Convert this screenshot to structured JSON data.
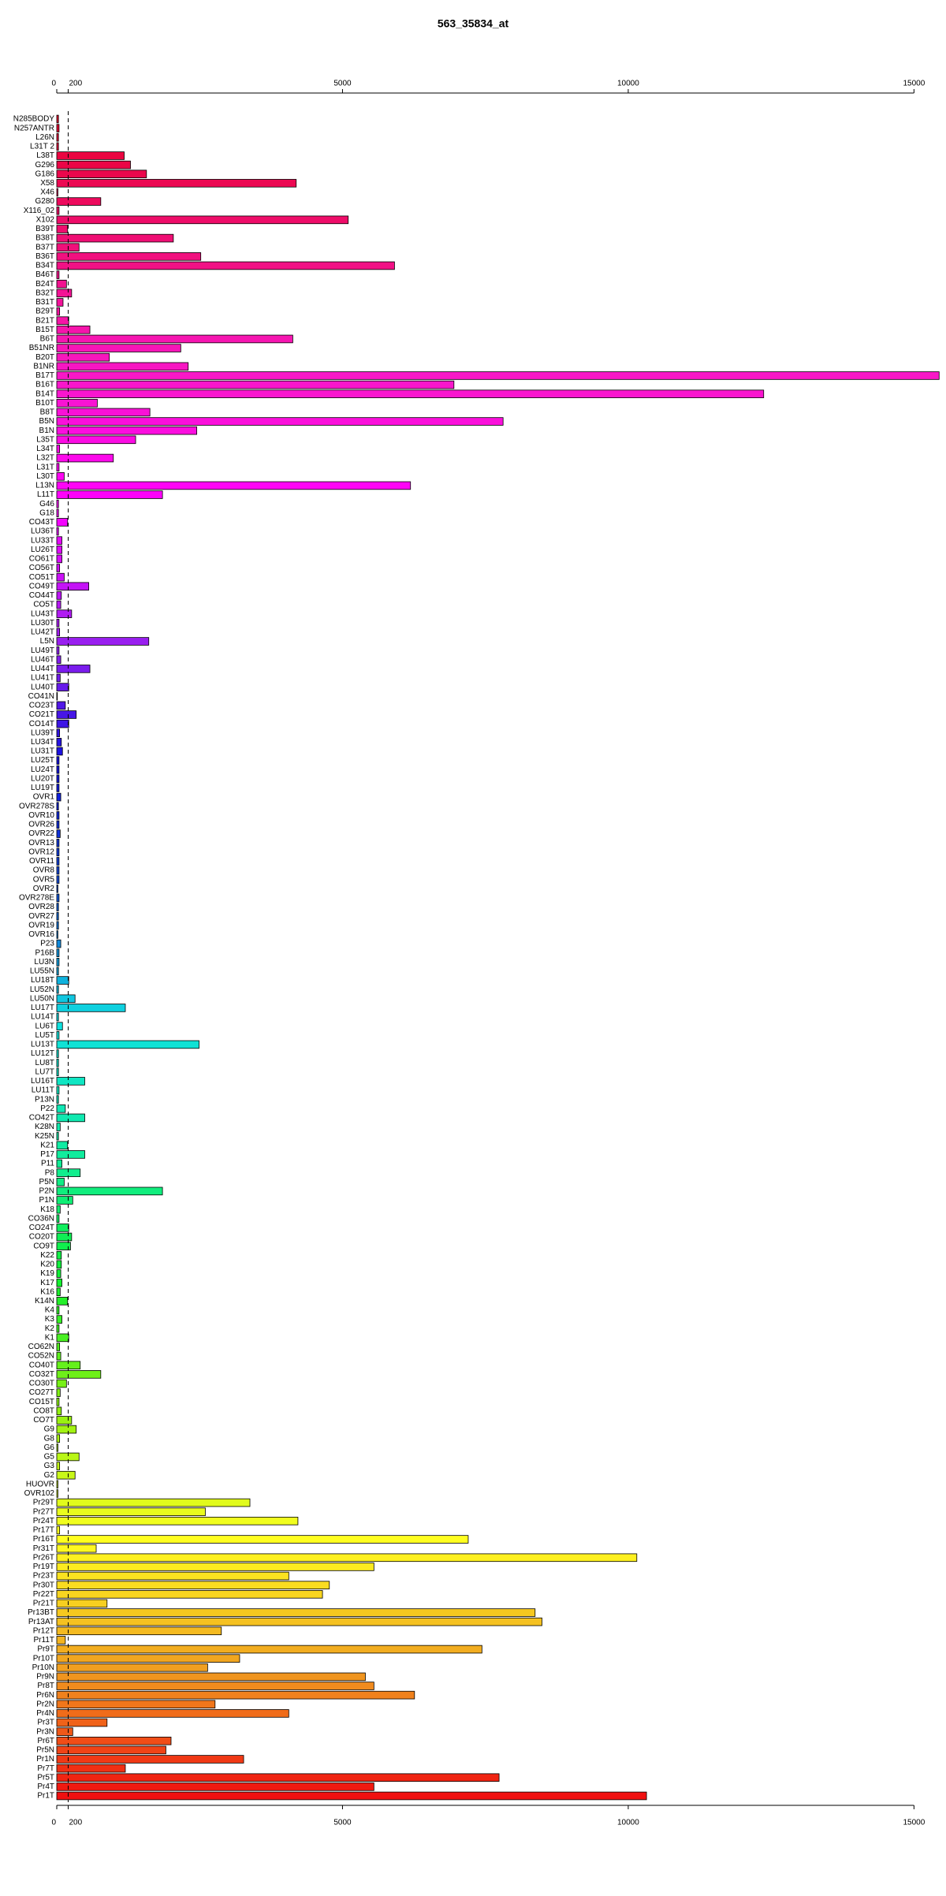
{
  "chart_data": {
    "type": "barh",
    "title": "563_35834_at",
    "categories": [
      "N285BODY",
      "N257ANTR",
      "L26N",
      "L31T 2",
      "L38T",
      "G296",
      "G186",
      "X58",
      "X46",
      "G280",
      "X116_02",
      "X102",
      "B39T",
      "B38T",
      "B37T",
      "B36T",
      "B34T",
      "B46T",
      "B24T",
      "B32T",
      "B31T",
      "B29T",
      "B21T",
      "B15T",
      "B6T",
      "B51NR",
      "B20T",
      "B1NR",
      "B17T",
      "B16T",
      "B14T",
      "B10T",
      "B8T",
      "B5N",
      "B1N",
      "L35T",
      "L34T",
      "L32T",
      "L31T",
      "L30T",
      "L13N",
      "L11T",
      "G46",
      "G18",
      "CO43T",
      "LU36T",
      "LU33T",
      "LU26T",
      "CO61T",
      "CO56T",
      "CO51T",
      "CO49T",
      "CO44T",
      "CO5T",
      "LU43T",
      "LU30T",
      "LU42T",
      "L5N",
      "LU49T",
      "LU46T",
      "LU44T",
      "LU41T",
      "LU40T",
      "CO41N",
      "CO23T",
      "CO21T",
      "CO14T",
      "LU39T",
      "LU34T",
      "LU31T",
      "LU25T",
      "LU24T",
      "LU20T",
      "LU19T",
      "OVR1",
      "OVR278S",
      "OVR10",
      "OVR26",
      "OVR22",
      "OVR13",
      "OVR12",
      "OVR11",
      "OVR8",
      "OVR5",
      "OVR2",
      "OVR278E",
      "OVR28",
      "OVR27",
      "OVR19",
      "OVR16",
      "P23",
      "P16B",
      "LU3N",
      "LU55N",
      "LU18T",
      "LU52N",
      "LU50N",
      "LU17T",
      "LU14T",
      "LU6T",
      "LU5T",
      "LU13T",
      "LU12T",
      "LU8T",
      "LU7T",
      "LU16T",
      "LU11T",
      "P13N",
      "P22",
      "CO42T",
      "K28N",
      "K25N",
      "K21",
      "P17",
      "P11",
      "P8",
      "P5N",
      "P2N",
      "P1N",
      "K18",
      "CO36N",
      "CO24T",
      "CO20T",
      "CO9T",
      "K22",
      "K20",
      "K19",
      "K17",
      "K16",
      "K14N",
      "K4",
      "K3",
      "K2",
      "K1",
      "CO62N",
      "CO52N",
      "CO40T",
      "CO32T",
      "CO30T",
      "CO27T",
      "CO15T",
      "CO8T",
      "CO7T",
      "G9",
      "G8",
      "G6",
      "G5",
      "G3",
      "G2",
      "HUOVR",
      "OVR102",
      "Pr29T",
      "Pr27T",
      "Pr24T",
      "Pr17T",
      "Pr16T",
      "Pr31T",
      "Pr26T",
      "Pr19T",
      "Pr23T",
      "Pr30T",
      "Pr22T",
      "Pr21T",
      "Pr13BT",
      "Pr13AT",
      "Pr12T",
      "Pr11T",
      "Pr9T",
      "Pr10T",
      "Pr10N",
      "Pr9N",
      "Pr8T",
      "Pr6N",
      "Pr2N",
      "Pr4N",
      "Pr3T",
      "Pr3N",
      "Pr6T",
      "Pr5N",
      "Pr1N",
      "Pr7T",
      "Pr5T",
      "Pr4T",
      "Pr1T"
    ],
    "values": [
      30,
      40,
      30,
      30,
      1180,
      1290,
      1570,
      4190,
      20,
      770,
      40,
      5100,
      190,
      2040,
      390,
      2520,
      5910,
      40,
      170,
      260,
      110,
      50,
      210,
      580,
      4130,
      2170,
      920,
      2300,
      15440,
      6950,
      12370,
      710,
      1630,
      7810,
      2450,
      1380,
      50,
      990,
      40,
      130,
      6190,
      1850,
      30,
      30,
      190,
      30,
      90,
      90,
      90,
      50,
      130,
      560,
      80,
      70,
      260,
      40,
      50,
      1610,
      40,
      70,
      580,
      60,
      210,
      10,
      150,
      340,
      210,
      50,
      80,
      100,
      40,
      40,
      40,
      40,
      70,
      30,
      40,
      40,
      60,
      40,
      40,
      40,
      40,
      40,
      20,
      40,
      30,
      30,
      30,
      20,
      70,
      40,
      40,
      30,
      210,
      30,
      320,
      1200,
      30,
      100,
      40,
      2490,
      30,
      30,
      30,
      490,
      40,
      30,
      150,
      490,
      60,
      30,
      190,
      490,
      90,
      410,
      130,
      1850,
      280,
      60,
      40,
      210,
      260,
      240,
      80,
      80,
      70,
      90,
      60,
      190,
      40,
      90,
      40,
      210,
      50,
      70,
      410,
      770,
      170,
      60,
      40,
      80,
      260,
      340,
      50,
      20,
      390,
      50,
      320,
      20,
      20,
      3380,
      2600,
      4220,
      50,
      7200,
      690,
      10150,
      5550,
      4060,
      4770,
      4650,
      880,
      8370,
      8490,
      2880,
      150,
      7440,
      3200,
      2640,
      5400,
      5550,
      6260,
      2770,
      4060,
      880,
      280,
      2000,
      1910,
      3270,
      1200,
      7740,
      5550,
      10320
    ],
    "color_stops": [
      "#e8002a",
      "#f0107a",
      "#f818c8",
      "#ff00ff",
      "#a020f0",
      "#1010e0",
      "#1050d8",
      "#10e0e0",
      "#10eca0",
      "#10f030",
      "#90f010",
      "#ffff20",
      "#f0a020",
      "#f01010"
    ],
    "xlim": [
      0,
      15450
    ],
    "xticks": [
      0,
      200,
      5000,
      10000,
      15000
    ],
    "reference_line": 200
  }
}
